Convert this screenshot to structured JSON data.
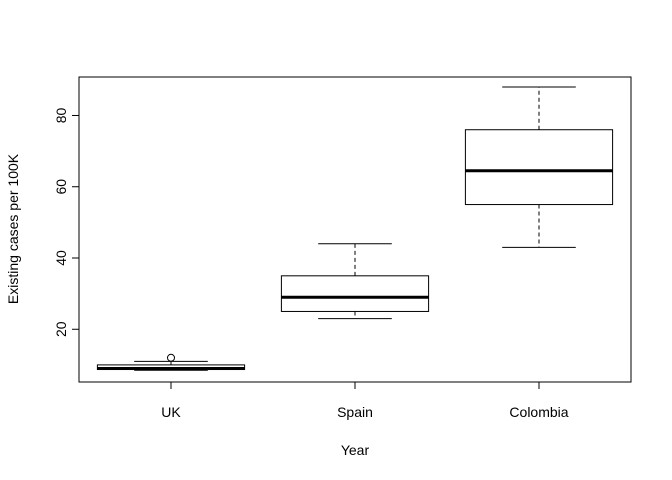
{
  "chart_data": {
    "type": "boxplot",
    "title": "",
    "xlabel": "Year",
    "ylabel": "Existing cases per 100K",
    "ylim": [
      5.2,
      90.8
    ],
    "yticks": [
      20,
      40,
      60,
      80
    ],
    "ytick_labels": [
      "20",
      "40",
      "60",
      "80"
    ],
    "grid": false,
    "categories": [
      "UK",
      "Spain",
      "Colombia"
    ],
    "boxes": [
      {
        "category": "UK",
        "whisker_low": 8.5,
        "q1": 8.7,
        "median": 9.0,
        "q3": 10.0,
        "whisker_high": 11.0,
        "outliers": [
          12.0
        ]
      },
      {
        "category": "Spain",
        "whisker_low": 23.0,
        "q1": 25.0,
        "median": 29.0,
        "q3": 35.0,
        "whisker_high": 44.0,
        "outliers": []
      },
      {
        "category": "Colombia",
        "whisker_low": 43.0,
        "q1": 55.0,
        "median": 64.5,
        "q3": 76.0,
        "whisker_high": 88.0,
        "outliers": []
      }
    ]
  }
}
